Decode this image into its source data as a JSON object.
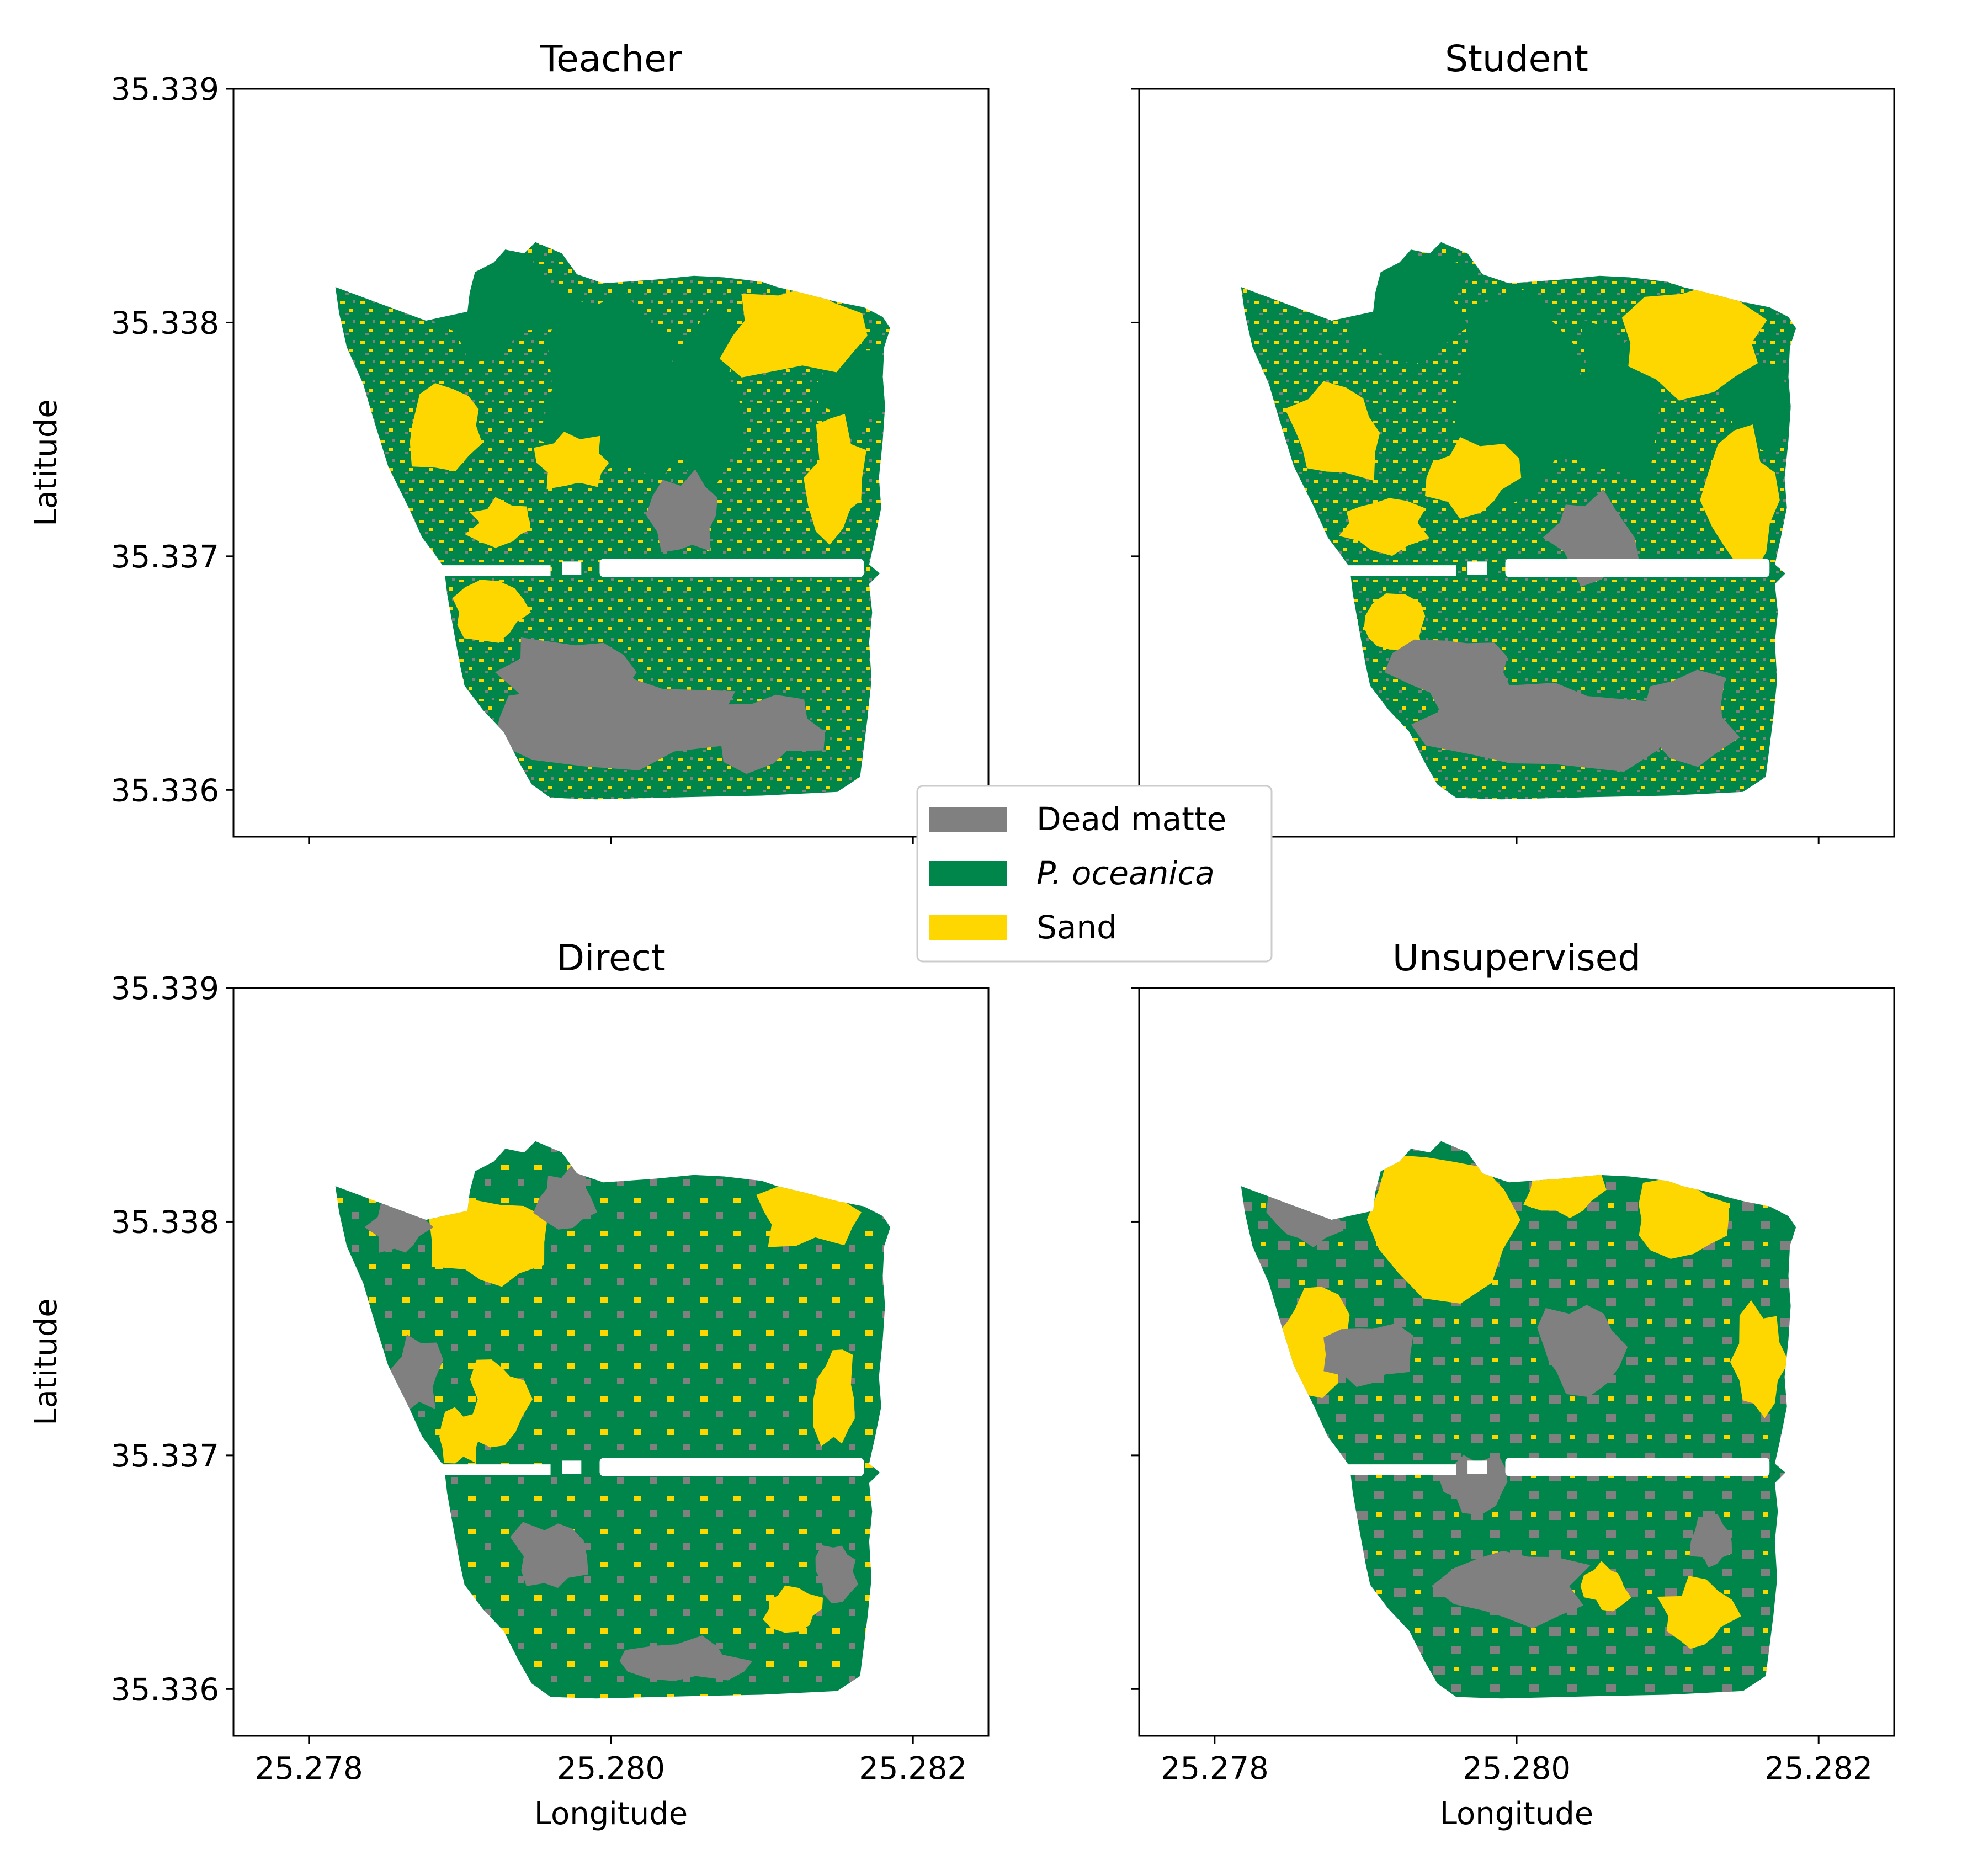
{
  "colors": {
    "dead_matte": "#808080",
    "p_oceanica": "#00854A",
    "sand": "#FFD700"
  },
  "panels": [
    {
      "title": "Teacher",
      "variant": "teacher",
      "show_ylabel": true,
      "show_xlabels": false
    },
    {
      "title": "Student",
      "variant": "student",
      "show_ylabel": false,
      "show_xlabels": false
    },
    {
      "title": "Direct",
      "variant": "direct",
      "show_ylabel": true,
      "show_xlabels": true
    },
    {
      "title": "Unsupervised",
      "variant": "unsupervised",
      "show_ylabel": false,
      "show_xlabels": true
    }
  ],
  "axes": {
    "xlabel": "Longitude",
    "ylabel": "Latitude",
    "xlim": [
      25.2775,
      25.2825
    ],
    "ylim": [
      35.3358,
      35.339
    ],
    "x_ticks": [
      "25.278",
      "25.280",
      "25.282"
    ],
    "y_ticks": [
      "35.339",
      "35.338",
      "35.337",
      "35.336"
    ]
  },
  "legend": {
    "placement": "center",
    "entries": [
      {
        "label": "Dead matte",
        "color": "#808080",
        "italic": false
      },
      {
        "label": "P. oceanica",
        "color": "#00854A",
        "italic": true
      },
      {
        "label": "Sand",
        "color": "#FFD700",
        "italic": false
      }
    ]
  }
}
